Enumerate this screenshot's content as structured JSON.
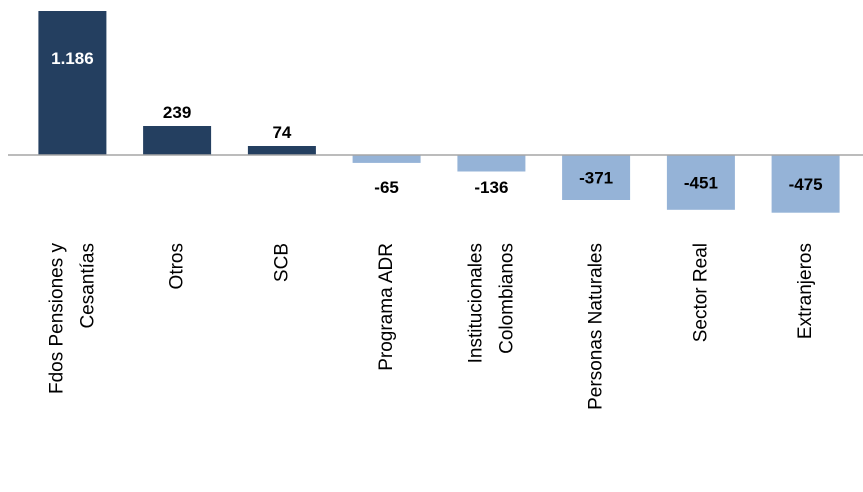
{
  "chart_data": {
    "type": "bar",
    "title": "",
    "xlabel": "",
    "ylabel": "",
    "categories": [
      [
        "Fdos Pensiones y",
        "Cesantías"
      ],
      [
        "Otros"
      ],
      [
        "SCB"
      ],
      [
        "Programa ADR"
      ],
      [
        "Institucionales",
        "Colombianos"
      ],
      [
        "Personas Naturales"
      ],
      [
        "Sector Real"
      ],
      [
        "Extranjeros"
      ]
    ],
    "values": [
      1186,
      239,
      74,
      -65,
      -136,
      -371,
      -451,
      -475
    ],
    "value_labels": [
      "1.186",
      "239",
      "74",
      "-65",
      "-136",
      "-371",
      "-451",
      "-475"
    ],
    "ylim": [
      -475,
      1186
    ],
    "colors": {
      "positive": "#243f60",
      "negative": "#95b3d7",
      "axis": "#a6a6a6"
    }
  }
}
